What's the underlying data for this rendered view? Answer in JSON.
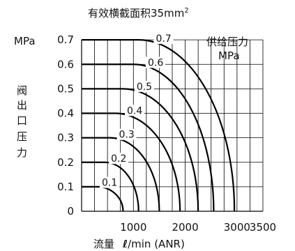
{
  "chart_data": {
    "type": "line",
    "title": "有效横截面积35mm",
    "title_superscript": "2",
    "xlabel_prefix": "流量",
    "xlabel_symbol": "ℓ",
    "xlabel_suffix": "/min (ANR)",
    "ylabel_chars": [
      "阀",
      "出",
      "口",
      "压",
      "力"
    ],
    "y_unit": "MPa",
    "legend_title": "供给压力",
    "legend_unit": "MPa",
    "x_ticks": [
      "1000",
      "2000",
      "3000",
      "3500"
    ],
    "x_tick_values": [
      1000,
      2000,
      3000,
      3500
    ],
    "y_ticks": [
      "0",
      "0.1",
      "0.2",
      "0.3",
      "0.4",
      "0.5",
      "0.6",
      "0.7"
    ],
    "y_tick_values": [
      0,
      0.1,
      0.2,
      0.3,
      0.4,
      0.5,
      0.6,
      0.7
    ],
    "xlim": [
      0,
      3500
    ],
    "ylim": [
      0,
      0.8
    ],
    "grid": true,
    "series": [
      {
        "name": "0.1",
        "max_flow": 800,
        "values": [
          [
            0,
            0.1
          ],
          [
            300,
            0.1
          ],
          [
            500,
            0.09
          ],
          [
            650,
            0.07
          ],
          [
            750,
            0.04
          ],
          [
            800,
            0
          ]
        ]
      },
      {
        "name": "0.2",
        "max_flow": 1100,
        "values": [
          [
            0,
            0.2
          ],
          [
            450,
            0.2
          ],
          [
            700,
            0.19
          ],
          [
            900,
            0.16
          ],
          [
            1050,
            0.1
          ],
          [
            1100,
            0
          ]
        ]
      },
      {
        "name": "0.3",
        "max_flow": 1500,
        "values": [
          [
            0,
            0.3
          ],
          [
            550,
            0.3
          ],
          [
            900,
            0.29
          ],
          [
            1200,
            0.25
          ],
          [
            1420,
            0.17
          ],
          [
            1500,
            0
          ]
        ]
      },
      {
        "name": "0.4",
        "max_flow": 1900,
        "values": [
          [
            0,
            0.4
          ],
          [
            650,
            0.4
          ],
          [
            1100,
            0.39
          ],
          [
            1500,
            0.34
          ],
          [
            1800,
            0.25
          ],
          [
            1900,
            0
          ]
        ]
      },
      {
        "name": "0.5",
        "max_flow": 2250,
        "values": [
          [
            0,
            0.5
          ],
          [
            800,
            0.5
          ],
          [
            1300,
            0.49
          ],
          [
            1800,
            0.43
          ],
          [
            2150,
            0.32
          ],
          [
            2250,
            0
          ]
        ]
      },
      {
        "name": "0.6",
        "max_flow": 2550,
        "values": [
          [
            0,
            0.6
          ],
          [
            1000,
            0.6
          ],
          [
            1550,
            0.59
          ],
          [
            2100,
            0.52
          ],
          [
            2470,
            0.37
          ],
          [
            2550,
            0
          ]
        ]
      },
      {
        "name": "0.7",
        "max_flow": 2950,
        "values": [
          [
            0,
            0.7
          ],
          [
            1100,
            0.7
          ],
          [
            1800,
            0.69
          ],
          [
            2400,
            0.62
          ],
          [
            2850,
            0.45
          ],
          [
            2950,
            0
          ]
        ]
      }
    ]
  }
}
